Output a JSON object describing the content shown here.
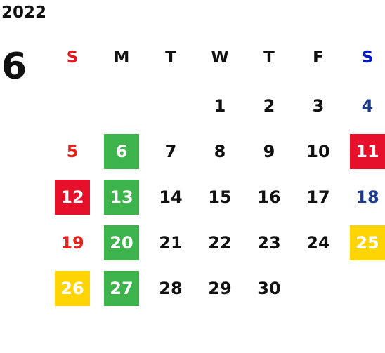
{
  "calendar": {
    "year": "2022",
    "month": "6",
    "weekdays": [
      {
        "label": "S",
        "color": "#e8141e"
      },
      {
        "label": "M",
        "color": "#111111"
      },
      {
        "label": "T",
        "color": "#111111"
      },
      {
        "label": "W",
        "color": "#111111"
      },
      {
        "label": "T",
        "color": "#111111"
      },
      {
        "label": "F",
        "color": "#111111"
      },
      {
        "label": "S",
        "color": "#0019c8"
      }
    ],
    "weeks": [
      [
        null,
        null,
        null,
        {
          "day": 1
        },
        {
          "day": 2
        },
        {
          "day": 3
        },
        {
          "day": 4,
          "color": "#1e3c8c"
        }
      ],
      [
        {
          "day": 5,
          "color": "#e8231e"
        },
        {
          "day": 6,
          "fill": "#3cb44b"
        },
        {
          "day": 7
        },
        {
          "day": 8
        },
        {
          "day": 9
        },
        {
          "day": 10
        },
        {
          "day": 11,
          "fill": "#e6102a"
        }
      ],
      [
        {
          "day": 12,
          "fill": "#e6102a"
        },
        {
          "day": 13,
          "fill": "#3cb44b"
        },
        {
          "day": 14
        },
        {
          "day": 15
        },
        {
          "day": 16
        },
        {
          "day": 17
        },
        {
          "day": 18,
          "color": "#1e3c8c"
        }
      ],
      [
        {
          "day": 19,
          "color": "#e8231e"
        },
        {
          "day": 20,
          "fill": "#3cb44b"
        },
        {
          "day": 21
        },
        {
          "day": 22
        },
        {
          "day": 23
        },
        {
          "day": 24
        },
        {
          "day": 25,
          "fill": "#ffd400"
        }
      ],
      [
        {
          "day": 26,
          "fill": "#ffd400"
        },
        {
          "day": 27,
          "fill": "#3cb44b"
        },
        {
          "day": 28
        },
        {
          "day": 29
        },
        {
          "day": 30
        },
        null,
        null
      ]
    ]
  }
}
